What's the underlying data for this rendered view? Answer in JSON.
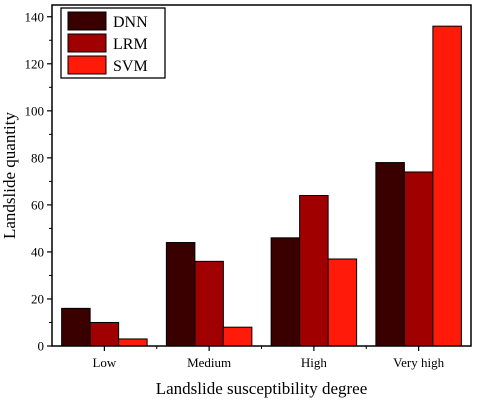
{
  "chart_data": {
    "type": "bar",
    "categories": [
      "Low",
      "Medium",
      "High",
      "Very high"
    ],
    "series": [
      {
        "name": "DNN",
        "color": "#3a0000",
        "values": [
          16,
          44,
          46,
          78
        ]
      },
      {
        "name": "LRM",
        "color": "#a00000",
        "values": [
          10,
          36,
          64,
          74
        ]
      },
      {
        "name": "SVM",
        "color": "#ff1a0a",
        "values": [
          3,
          8,
          37,
          136
        ]
      }
    ],
    "xlabel": "Landslide susceptibility degree",
    "ylabel": "Landslide quantity",
    "ylim": [
      0,
      145
    ],
    "yticks": [
      0,
      20,
      40,
      60,
      80,
      100,
      120,
      140
    ],
    "grid": false,
    "legend_position": "top-left"
  }
}
